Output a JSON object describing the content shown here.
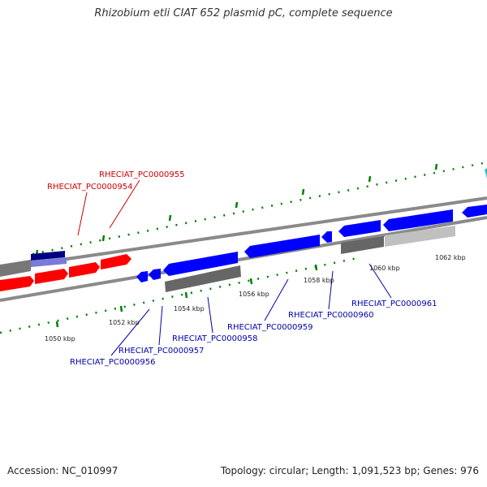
{
  "title": "Rhizobium etli CIAT 652 plasmid pC, complete sequence",
  "footer": {
    "accession": "Accession: NC_010997",
    "summary": "Topology: circular; Length: 1,091,523 bp; Genes: 976"
  },
  "scale_labels": [
    "1050 kbp",
    "1052 kbp",
    "1054 kbp",
    "1056 kbp",
    "1058 kbp",
    "1060 kbp",
    "1062 kbp"
  ],
  "gene_labels": {
    "top": [
      "RHECIAT_PC0000955",
      "RHECIAT_PC0000954"
    ],
    "bottom": [
      "RHECIAT_PC0000961",
      "RHECIAT_PC0000960",
      "RHECIAT_PC0000959",
      "RHECIAT_PC0000958",
      "RHECIAT_PC0000957",
      "RHECIAT_PC0000956"
    ]
  },
  "colors": {
    "forward_gene": "#ff0000",
    "reverse_gene": "#0000ff",
    "rna_dark": "#6b6b6b",
    "rna_light": "#c0c0c0",
    "backbone": "#888888",
    "tick": "#008000",
    "top_label": "#cc0000",
    "bottom_label": "#0000aa"
  }
}
